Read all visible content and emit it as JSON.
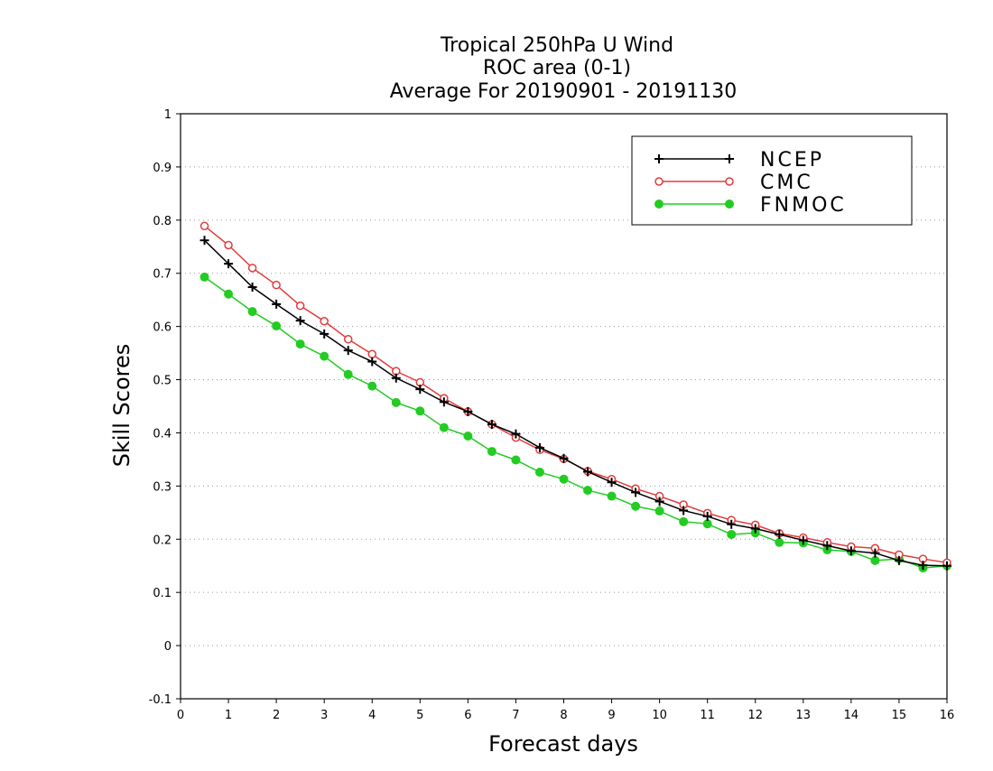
{
  "chart_data": {
    "type": "line",
    "title_lines": [
      "Tropical 250hPa U Wind",
      "ROC area (0-1)",
      "Average For 20190901 - 20191130"
    ],
    "xlabel": "Forecast days",
    "ylabel": "Skill Scores",
    "xlim": [
      0,
      16
    ],
    "ylim": [
      -0.1,
      1
    ],
    "xticks": [
      0,
      1,
      2,
      3,
      4,
      5,
      6,
      7,
      8,
      9,
      10,
      11,
      12,
      13,
      14,
      15,
      16
    ],
    "xtick_labels": [
      "0",
      "1",
      "2",
      "3",
      "4",
      "5",
      "6",
      "7",
      "8",
      "9",
      "10",
      "11",
      "12",
      "13",
      "14",
      "15",
      "16"
    ],
    "yticks": [
      -0.1,
      0,
      0.1,
      0.2,
      0.3,
      0.4,
      0.5,
      0.6,
      0.7,
      0.8,
      0.9,
      1
    ],
    "ytick_labels": [
      "-0.1",
      "0",
      "0.1",
      "0.2",
      "0.3",
      "0.4",
      "0.5",
      "0.6",
      "0.7",
      "0.8",
      "0.9",
      "1"
    ],
    "grid": "horizontal-dotted",
    "legend_position": "top-right",
    "x": [
      0.5,
      1,
      1.5,
      2,
      2.5,
      3,
      3.5,
      4,
      4.5,
      5,
      5.5,
      6,
      6.5,
      7,
      7.5,
      8,
      8.5,
      9,
      9.5,
      10,
      10.5,
      11,
      11.5,
      12,
      12.5,
      13,
      13.5,
      14,
      14.5,
      15,
      15.5,
      16
    ],
    "series": [
      {
        "name": "NCEP",
        "color": "#000000",
        "marker": "plus",
        "values": [
          0.762,
          0.718,
          0.674,
          0.642,
          0.611,
          0.586,
          0.555,
          0.534,
          0.503,
          0.482,
          0.458,
          0.44,
          0.416,
          0.398,
          0.372,
          0.352,
          0.327,
          0.307,
          0.288,
          0.271,
          0.254,
          0.243,
          0.228,
          0.22,
          0.209,
          0.198,
          0.188,
          0.178,
          0.174,
          0.16,
          0.151,
          0.15
        ]
      },
      {
        "name": "CMC",
        "color": "#e03c3c",
        "marker": "open-circle",
        "values": [
          0.789,
          0.753,
          0.71,
          0.678,
          0.639,
          0.61,
          0.576,
          0.548,
          0.516,
          0.495,
          0.465,
          0.44,
          0.416,
          0.391,
          0.368,
          0.351,
          0.328,
          0.313,
          0.295,
          0.281,
          0.265,
          0.249,
          0.236,
          0.227,
          0.211,
          0.203,
          0.194,
          0.186,
          0.183,
          0.171,
          0.163,
          0.156
        ]
      },
      {
        "name": "FNMOC",
        "color": "#22cc22",
        "marker": "filled-circle",
        "values": [
          0.693,
          0.661,
          0.628,
          0.601,
          0.567,
          0.544,
          0.51,
          0.488,
          0.457,
          0.441,
          0.41,
          0.394,
          0.365,
          0.349,
          0.326,
          0.313,
          0.292,
          0.281,
          0.262,
          0.253,
          0.233,
          0.229,
          0.209,
          0.212,
          0.194,
          0.193,
          0.18,
          0.177,
          0.16,
          0.163,
          0.146,
          0.15
        ]
      }
    ]
  }
}
